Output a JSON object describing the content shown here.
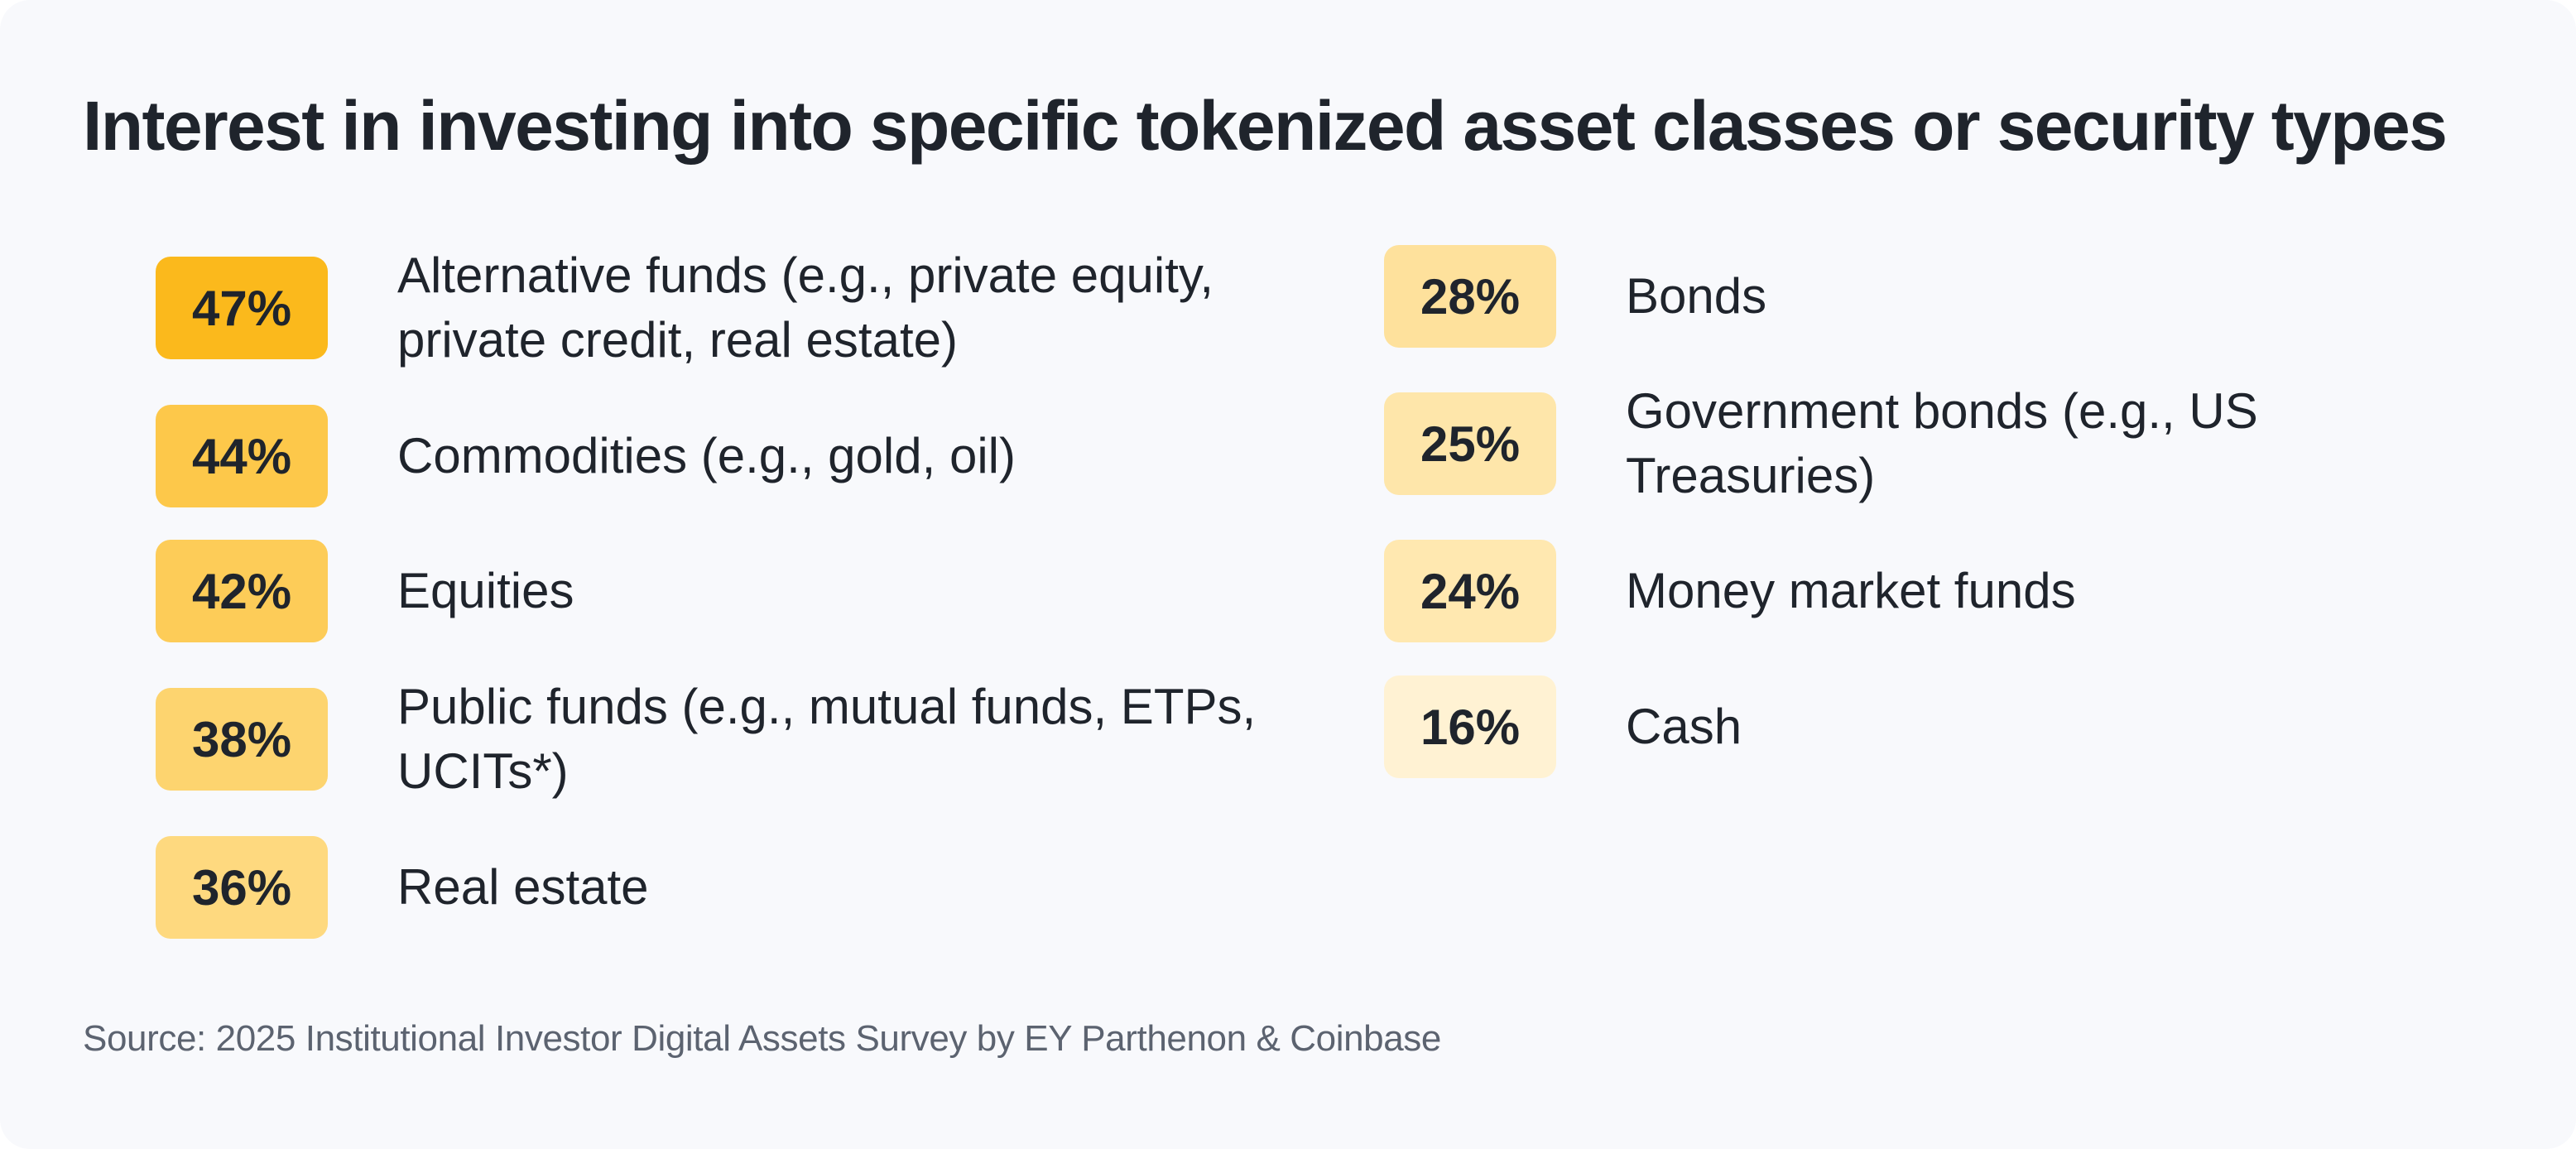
{
  "title": "Interest in investing into specific tokenized asset classes or security types",
  "source": "Source: 2025 Institutional Investor Digital Assets Survey by EY Parthenon & Coinbase",
  "colors": {
    "background": "#f8f9fc",
    "text": "#1f242c",
    "source_text": "#5c6370",
    "badge_scale_high": "#fbb91c",
    "badge_scale_low": "#fff4d6"
  },
  "chart_data": {
    "type": "table",
    "unit": "%",
    "items": [
      {
        "value": 47,
        "value_label": "47%",
        "label": "Alternative funds (e.g., private equity, private credit, real estate)",
        "color": "#fbb91c"
      },
      {
        "value": 44,
        "value_label": "44%",
        "label": "Commodities (e.g., gold, oil)",
        "color": "#fdc84a"
      },
      {
        "value": 42,
        "value_label": "42%",
        "label": "Equities",
        "color": "#fdcc58"
      },
      {
        "value": 38,
        "value_label": "38%",
        "label": "Public funds (e.g., mutual funds, ETPs, UCITs*)",
        "color": "#fdd46f"
      },
      {
        "value": 36,
        "value_label": "36%",
        "label": "Real estate",
        "color": "#fed97f"
      },
      {
        "value": 28,
        "value_label": "28%",
        "label": "Bonds",
        "color": "#fee19c"
      },
      {
        "value": 25,
        "value_label": "25%",
        "label": "Government bonds (e.g., US Treasuries)",
        "color": "#fee6aa"
      },
      {
        "value": 24,
        "value_label": "24%",
        "label": "Money market funds",
        "color": "#ffe8b0"
      },
      {
        "value": 16,
        "value_label": "16%",
        "label": "Cash",
        "color": "#fff2d3"
      }
    ]
  }
}
